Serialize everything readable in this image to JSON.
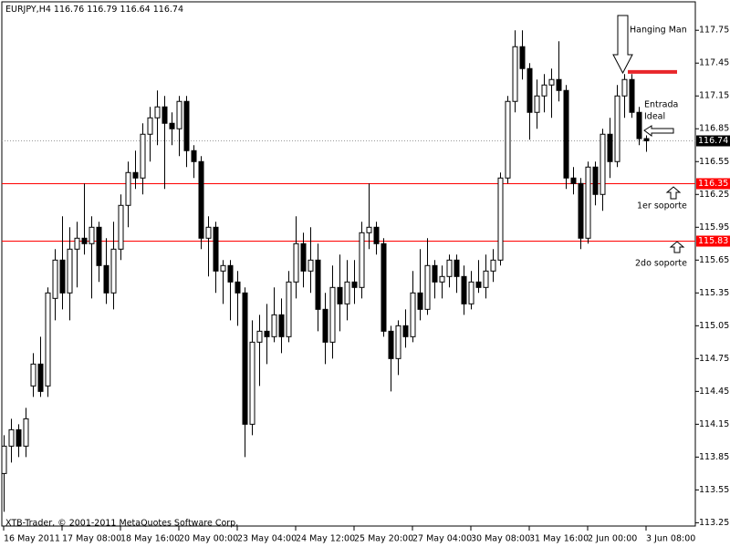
{
  "chart_data": {
    "type": "candlestick",
    "symbol": "EURJPY,H4",
    "footer": "XTB-Trader, © 2001-2011 MetaQuotes Software Corp.",
    "categories": [
      "16 May 2011",
      null,
      null,
      null,
      null,
      null,
      null,
      null,
      "17 May 08:00",
      null,
      null,
      null,
      null,
      null,
      null,
      null,
      "18 May 16:00",
      null,
      null,
      null,
      null,
      null,
      null,
      null,
      "20 May 00:00",
      null,
      null,
      null,
      null,
      null,
      null,
      null,
      "23 May 04:00",
      null,
      null,
      null,
      null,
      null,
      null,
      null,
      "24 May 12:00",
      null,
      null,
      null,
      null,
      null,
      null,
      null,
      "25 May 20:00",
      null,
      null,
      null,
      null,
      null,
      null,
      null,
      "27 May 04:00",
      null,
      null,
      null,
      null,
      null,
      null,
      null,
      "30 May 08:00",
      null,
      null,
      null,
      null,
      null,
      null,
      null,
      "31 May 16:00",
      null,
      null,
      null,
      null,
      null,
      null,
      null,
      "2 Jun 00:00",
      null,
      null,
      null,
      null,
      null,
      null,
      null,
      "3 Jun 08:00"
    ],
    "open": [
      113.7,
      113.95,
      114.1,
      113.95,
      114.5,
      114.7,
      114.5,
      115.3,
      115.65,
      115.35,
      115.75,
      115.85,
      115.8,
      115.95,
      115.6,
      115.35,
      115.75,
      116.15,
      116.45,
      116.4,
      116.8,
      116.95,
      117.05,
      116.9,
      116.85,
      117.1,
      116.65,
      116.55,
      115.85,
      115.95,
      115.55,
      115.6,
      115.45,
      115.35,
      114.15,
      114.9,
      115.0,
      114.95,
      115.15,
      114.95,
      115.45,
      115.8,
      115.55,
      115.65,
      115.2,
      114.9,
      115.4,
      115.25,
      115.45,
      115.4,
      115.9,
      115.95,
      115.8,
      115.0,
      114.75,
      115.05,
      114.95,
      115.35,
      115.2,
      115.6,
      115.45,
      115.5,
      115.65,
      115.5,
      115.25,
      115.45,
      115.4,
      115.55,
      115.65,
      116.4,
      117.1,
      117.6,
      117.4,
      117.0,
      117.15,
      117.25,
      117.3,
      117.2,
      116.4,
      116.35,
      115.85,
      116.5,
      116.25,
      116.8,
      116.55,
      117.15,
      117.3,
      117.0,
      116.76
    ],
    "high": [
      114.05,
      114.2,
      114.15,
      114.3,
      114.8,
      114.95,
      115.4,
      115.75,
      116.05,
      115.95,
      116.0,
      116.35,
      116.05,
      116.0,
      115.85,
      116.0,
      116.25,
      116.55,
      116.65,
      116.9,
      117.05,
      117.2,
      117.15,
      117.0,
      117.15,
      117.15,
      116.7,
      116.6,
      116.05,
      116.0,
      115.65,
      115.65,
      115.55,
      115.4,
      115.1,
      115.15,
      115.25,
      115.4,
      115.3,
      115.55,
      116.05,
      115.9,
      115.95,
      115.8,
      115.35,
      115.6,
      115.7,
      115.65,
      115.65,
      116.0,
      116.35,
      116.0,
      115.85,
      115.05,
      115.1,
      115.2,
      115.55,
      115.75,
      115.85,
      115.65,
      115.6,
      115.7,
      115.7,
      115.6,
      115.55,
      115.65,
      115.7,
      115.75,
      116.45,
      117.15,
      117.75,
      117.75,
      117.45,
      117.3,
      117.35,
      117.4,
      117.65,
      117.25,
      116.5,
      116.4,
      116.55,
      116.55,
      116.85,
      116.95,
      117.25,
      117.35,
      117.35,
      117.05,
      116.79
    ],
    "low": [
      113.35,
      113.8,
      113.85,
      113.85,
      114.4,
      114.4,
      114.4,
      115.1,
      115.2,
      115.1,
      115.4,
      115.7,
      115.3,
      115.45,
      115.25,
      115.2,
      115.65,
      115.95,
      116.3,
      116.25,
      116.55,
      116.7,
      116.3,
      116.7,
      116.6,
      116.5,
      116.4,
      115.75,
      115.5,
      115.35,
      115.25,
      115.1,
      115.05,
      113.85,
      114.05,
      114.5,
      114.7,
      114.9,
      114.8,
      114.9,
      115.3,
      115.4,
      115.35,
      115.0,
      114.7,
      114.75,
      115.0,
      115.1,
      115.25,
      115.3,
      115.75,
      115.7,
      114.95,
      114.45,
      114.6,
      114.85,
      114.9,
      115.1,
      115.15,
      115.3,
      115.3,
      115.4,
      115.35,
      115.15,
      115.2,
      115.35,
      115.3,
      115.45,
      115.6,
      116.35,
      117.0,
      117.3,
      116.75,
      116.85,
      117.0,
      116.95,
      117.1,
      116.3,
      116.25,
      115.75,
      115.8,
      116.15,
      116.1,
      116.4,
      116.5,
      116.95,
      116.95,
      116.7,
      116.64
    ],
    "close": [
      113.95,
      114.1,
      113.95,
      114.2,
      114.7,
      114.45,
      115.35,
      115.65,
      115.35,
      115.75,
      115.85,
      115.8,
      115.95,
      115.6,
      115.35,
      115.75,
      116.15,
      116.45,
      116.4,
      116.8,
      116.95,
      117.05,
      116.9,
      116.85,
      117.1,
      116.65,
      116.55,
      115.85,
      115.95,
      115.55,
      115.6,
      115.45,
      115.35,
      114.15,
      114.9,
      115.0,
      114.95,
      115.15,
      114.95,
      115.45,
      115.8,
      115.55,
      115.65,
      115.2,
      114.9,
      115.4,
      115.25,
      115.45,
      115.4,
      115.9,
      115.95,
      115.8,
      115.0,
      114.75,
      115.05,
      114.95,
      115.35,
      115.2,
      115.6,
      115.45,
      115.5,
      115.65,
      115.5,
      115.25,
      115.45,
      115.4,
      115.55,
      115.65,
      116.4,
      117.1,
      117.6,
      117.4,
      117.0,
      117.15,
      117.25,
      117.3,
      117.2,
      116.4,
      116.35,
      115.85,
      116.5,
      116.25,
      116.8,
      116.55,
      117.15,
      117.3,
      117.0,
      116.76,
      116.74
    ],
    "ylim": [
      113.22,
      118.01
    ],
    "yticks": [
      {
        "value": 117.75,
        "label": "117.75"
      },
      {
        "value": 117.45,
        "label": "117.45"
      },
      {
        "value": 117.15,
        "label": "117.15"
      },
      {
        "value": 116.85,
        "label": "116.85"
      },
      {
        "value": 116.55,
        "label": "116.55"
      },
      {
        "value": 116.25,
        "label": "116.25"
      },
      {
        "value": 115.95,
        "label": "115.95"
      },
      {
        "value": 115.65,
        "label": "115.65"
      },
      {
        "value": 115.35,
        "label": "115.35"
      },
      {
        "value": 115.05,
        "label": "115.05"
      },
      {
        "value": 114.75,
        "label": "114.75"
      },
      {
        "value": 114.45,
        "label": "114.45"
      },
      {
        "value": 114.15,
        "label": "114.15"
      },
      {
        "value": 113.85,
        "label": "113.85"
      },
      {
        "value": 113.55,
        "label": "113.55"
      },
      {
        "value": 113.25,
        "label": "113.25"
      }
    ],
    "levels": [
      {
        "value": 116.35,
        "label": "116.35",
        "color": "#ff0000"
      },
      {
        "value": 115.83,
        "label": "115.83",
        "color": "#ff0000"
      }
    ],
    "marker_line": {
      "value": 117.37,
      "color": "#e8262a"
    },
    "annotations": [
      "Hanging Man",
      "Entrada",
      "Ideal",
      "1er soporte",
      "2do soporte"
    ]
  }
}
